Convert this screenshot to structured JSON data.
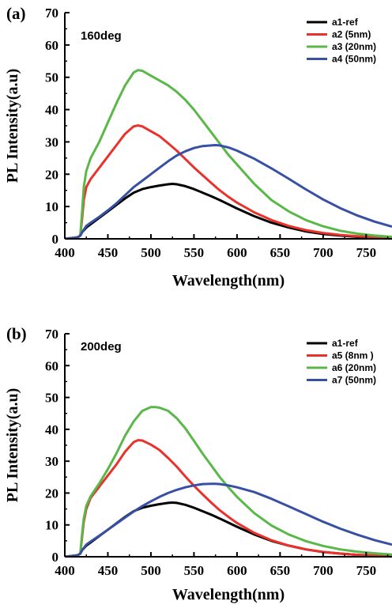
{
  "chart_data": [
    {
      "type": "line",
      "panel_label": "(a)",
      "inset_label": "160deg",
      "xlabel": "Wavelength(nm)",
      "ylabel": "PL Intensity(a.u)",
      "xlim": [
        400,
        780
      ],
      "ylim": [
        0,
        70
      ],
      "xticks": [
        400,
        450,
        500,
        550,
        600,
        650,
        700,
        750
      ],
      "yticks": [
        0,
        10,
        20,
        30,
        40,
        50,
        60,
        70
      ],
      "legend_position": "top-right",
      "series": [
        {
          "name": "a1-ref",
          "color": "#000000",
          "x": [
            400,
            410,
            415,
            418,
            420,
            425,
            430,
            440,
            450,
            460,
            470,
            480,
            490,
            500,
            510,
            520,
            525,
            530,
            540,
            550,
            560,
            570,
            580,
            590,
            600,
            620,
            640,
            660,
            680,
            700,
            720,
            740,
            760,
            780
          ],
          "y": [
            0,
            0.3,
            0.5,
            1,
            2,
            3.5,
            4.5,
            6.5,
            8.5,
            10.5,
            12.5,
            14.3,
            15.4,
            16,
            16.5,
            16.9,
            17,
            16.9,
            16.3,
            15.4,
            14.3,
            13.2,
            12,
            10.7,
            9.4,
            7,
            5,
            3.5,
            2.3,
            1.5,
            1,
            0.6,
            0.3,
            0.1
          ]
        },
        {
          "name": "a2 (5nm)",
          "color": "#e8322b",
          "x": [
            400,
            410,
            415,
            418,
            420,
            422,
            425,
            430,
            440,
            450,
            460,
            470,
            480,
            485,
            490,
            500,
            510,
            520,
            530,
            540,
            550,
            560,
            570,
            580,
            590,
            600,
            620,
            640,
            660,
            680,
            700,
            720,
            740,
            760,
            780
          ],
          "y": [
            0,
            0.3,
            0.5,
            1,
            6,
            12,
            16,
            18.5,
            22,
            25.5,
            29,
            32.5,
            34.8,
            35.1,
            34.8,
            33.3,
            31.8,
            29.6,
            27.3,
            24.7,
            22.1,
            19.7,
            17.3,
            15,
            13,
            11.2,
            8.2,
            5.8,
            4,
            2.7,
            1.8,
            1.2,
            0.8,
            0.5,
            0.3
          ]
        },
        {
          "name": "a3 (20nm)",
          "color": "#59b848",
          "x": [
            400,
            410,
            415,
            418,
            420,
            422,
            425,
            430,
            440,
            450,
            460,
            470,
            480,
            485,
            490,
            500,
            510,
            520,
            530,
            540,
            550,
            560,
            570,
            580,
            590,
            600,
            620,
            640,
            660,
            680,
            700,
            720,
            740,
            760,
            780
          ],
          "y": [
            0,
            0.3,
            0.5,
            1,
            8,
            16,
            21,
            25,
            30,
            36,
            42,
            47.5,
            51.5,
            52.2,
            52,
            50.5,
            49,
            47.5,
            45.5,
            43,
            40,
            36.5,
            33,
            29.5,
            26,
            23,
            17,
            12,
            8.5,
            5.8,
            3.9,
            2.5,
            1.6,
            1,
            0.6
          ]
        },
        {
          "name": "a4 (50nm)",
          "color": "#3850a3",
          "x": [
            400,
            410,
            415,
            418,
            420,
            425,
            430,
            440,
            450,
            460,
            470,
            480,
            490,
            500,
            510,
            520,
            530,
            540,
            550,
            560,
            570,
            575,
            580,
            590,
            600,
            620,
            640,
            660,
            680,
            700,
            720,
            740,
            760,
            780
          ],
          "y": [
            0,
            0.3,
            0.5,
            1,
            2,
            4,
            5,
            6.8,
            8.8,
            11,
            13.5,
            16,
            18,
            20,
            22,
            24,
            25.8,
            27.1,
            28.1,
            28.7,
            28.9,
            29,
            28.9,
            28.3,
            27.3,
            24.8,
            21.8,
            18.6,
            15.3,
            12.2,
            9.5,
            7.2,
            5.3,
            3.8
          ]
        }
      ]
    },
    {
      "type": "line",
      "panel_label": "(b)",
      "inset_label": "200deg",
      "xlabel": "Wavelength(nm)",
      "ylabel": "PL Intensity(a.u)",
      "xlim": [
        400,
        780
      ],
      "ylim": [
        0,
        70
      ],
      "xticks": [
        400,
        450,
        500,
        550,
        600,
        650,
        700,
        750
      ],
      "yticks": [
        0,
        10,
        20,
        30,
        40,
        50,
        60,
        70
      ],
      "legend_position": "top-right",
      "series": [
        {
          "name": "a1-ref",
          "color": "#000000",
          "x": [
            400,
            410,
            415,
            418,
            420,
            425,
            430,
            440,
            450,
            460,
            470,
            480,
            490,
            500,
            510,
            520,
            525,
            530,
            540,
            550,
            560,
            570,
            580,
            590,
            600,
            620,
            640,
            660,
            680,
            700,
            720,
            740,
            760,
            780
          ],
          "y": [
            0,
            0.3,
            0.5,
            1,
            2,
            3.5,
            4.5,
            6.5,
            8.5,
            10.5,
            12.5,
            14.3,
            15.4,
            16,
            16.5,
            16.9,
            17,
            16.9,
            16.3,
            15.4,
            14.3,
            13.2,
            12,
            10.7,
            9.4,
            7,
            5,
            3.5,
            2.3,
            1.5,
            1,
            0.6,
            0.3,
            0.1
          ]
        },
        {
          "name": "a5 (8nm )",
          "color": "#e8322b",
          "x": [
            400,
            410,
            415,
            418,
            420,
            422,
            425,
            430,
            440,
            450,
            460,
            470,
            480,
            485,
            490,
            500,
            510,
            520,
            530,
            540,
            550,
            560,
            570,
            580,
            590,
            600,
            620,
            640,
            660,
            680,
            700,
            720,
            740,
            760,
            780
          ],
          "y": [
            0,
            0.3,
            0.5,
            1,
            6,
            11,
            15,
            18.5,
            22,
            25.5,
            29,
            33,
            36,
            36.6,
            36.5,
            35.2,
            33.5,
            31,
            28.3,
            25.2,
            22.3,
            19.6,
            17,
            14.6,
            12.5,
            10.6,
            7.5,
            5.2,
            3.5,
            2.3,
            1.5,
            1,
            0.6,
            0.4,
            0.2
          ]
        },
        {
          "name": "a6 (20nm)",
          "color": "#59b848",
          "x": [
            400,
            410,
            415,
            418,
            420,
            422,
            425,
            430,
            440,
            450,
            460,
            470,
            480,
            490,
            500,
            505,
            510,
            520,
            530,
            540,
            550,
            560,
            570,
            580,
            590,
            600,
            620,
            640,
            660,
            680,
            700,
            720,
            740,
            760,
            780
          ],
          "y": [
            0,
            0.3,
            0.5,
            1,
            7,
            12,
            16,
            19,
            23,
            27.5,
            32.5,
            38,
            42.5,
            45.8,
            47,
            47,
            46.8,
            45.8,
            43.5,
            40.3,
            36.4,
            32.4,
            28.7,
            25,
            21.8,
            18.8,
            13.7,
            9.8,
            7,
            4.9,
            3.4,
            2.3,
            1.6,
            1.1,
            0.7
          ]
        },
        {
          "name": "a7 (50nm)",
          "color": "#3850a3",
          "x": [
            400,
            410,
            415,
            418,
            420,
            425,
            430,
            440,
            450,
            460,
            470,
            480,
            490,
            500,
            510,
            520,
            530,
            540,
            550,
            560,
            570,
            575,
            580,
            590,
            600,
            620,
            640,
            660,
            680,
            700,
            720,
            740,
            760,
            780
          ],
          "y": [
            0,
            0.3,
            0.5,
            1,
            2,
            3.8,
            4.8,
            6.6,
            8.5,
            10.4,
            12.3,
            14.2,
            15.9,
            17.4,
            18.8,
            20,
            21,
            21.8,
            22.4,
            22.8,
            22.9,
            22.9,
            22.8,
            22.4,
            21.8,
            20.3,
            18.2,
            15.8,
            13.4,
            11,
            8.8,
            6.9,
            5.2,
            3.8
          ]
        }
      ]
    }
  ]
}
